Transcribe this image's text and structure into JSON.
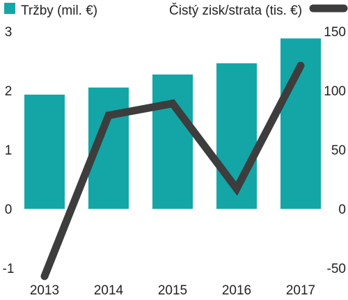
{
  "chart_data": {
    "type": "bar+line",
    "categories": [
      "2013",
      "2014",
      "2015",
      "2016",
      "2017"
    ],
    "series": [
      {
        "name": "Tržby (mil. €)",
        "type": "bar",
        "axis": "left",
        "color": "#14a6a6",
        "values": [
          1.93,
          2.05,
          2.27,
          2.46,
          2.88
        ]
      },
      {
        "name": "Čistý zisk/strata (tis. €)",
        "type": "line",
        "axis": "right",
        "color": "#3d3d3d",
        "values": [
          -57,
          79,
          89,
          17,
          121
        ]
      }
    ],
    "left_axis": {
      "ylim": [
        -1,
        3
      ],
      "ticks": [
        "-1",
        "0",
        "1",
        "2",
        "3"
      ]
    },
    "right_axis": {
      "ylim": [
        -50,
        150
      ],
      "ticks": [
        "-50",
        "0",
        "50",
        "100",
        "150"
      ]
    },
    "grid": false,
    "legend_position": "top"
  }
}
